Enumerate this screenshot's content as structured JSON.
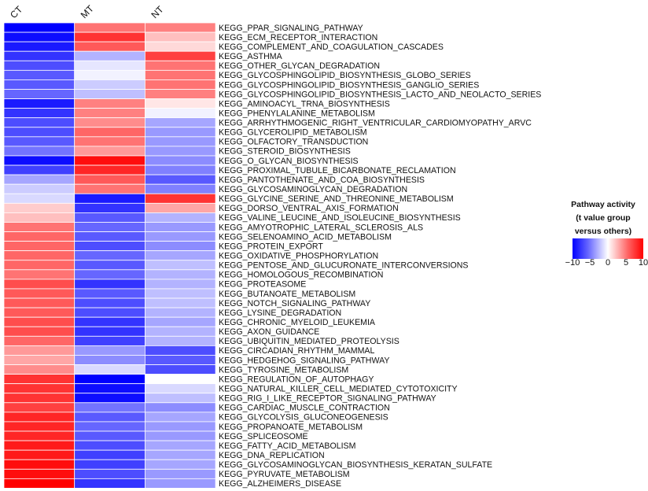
{
  "chart_data": {
    "type": "heatmap",
    "columns": [
      "CT",
      "MT",
      "NT"
    ],
    "rows": [
      "KEGG_PPAR_SIGNALING_PATHWAY",
      "KEGG_ECM_RECEPTOR_INTERACTION",
      "KEGG_COMPLEMENT_AND_COAGULATION_CASCADES",
      "KEGG_ASTHMA",
      "KEGG_OTHER_GLYCAN_DEGRADATION",
      "KEGG_GLYCOSPHINGOLIPID_BIOSYNTHESIS_GLOBO_SERIES",
      "KEGG_GLYCOSPHINGOLIPID_BIOSYNTHESIS_GANGLIO_SERIES",
      "KEGG_GLYCOSPHINGOLIPID_BIOSYNTHESIS_LACTO_AND_NEOLACTO_SERIES",
      "KEGG_AMINOACYL_TRNA_BIOSYNTHESIS",
      "KEGG_PHENYLALANINE_METABOLISM",
      "KEGG_ARRHYTHMOGENIC_RIGHT_VENTRICULAR_CARDIOMYOPATHY_ARVC",
      "KEGG_GLYCEROLIPID_METABOLISM",
      "KEGG_OLFACTORY_TRANSDUCTION",
      "KEGG_STEROID_BIOSYNTHESIS",
      "KEGG_O_GLYCAN_BIOSYNTHESIS",
      "KEGG_PROXIMAL_TUBULE_BICARBONATE_RECLAMATION",
      "KEGG_PANTOTHENATE_AND_COA_BIOSYNTHESIS",
      "KEGG_GLYCOSAMINOGLYCAN_DEGRADATION",
      "KEGG_GLYCINE_SERINE_AND_THREONINE_METABOLISM",
      "KEGG_DORSO_VENTRAL_AXIS_FORMATION",
      "KEGG_VALINE_LEUCINE_AND_ISOLEUCINE_BIOSYNTHESIS",
      "KEGG_AMYOTROPHIC_LATERAL_SCLEROSIS_ALS",
      "KEGG_SELENOAMINO_ACID_METABOLISM",
      "KEGG_PROTEIN_EXPORT",
      "KEGG_OXIDATIVE_PHOSPHORYLATION",
      "KEGG_PENTOSE_AND_GLUCURONATE_INTERCONVERSIONS",
      "KEGG_HOMOLOGOUS_RECOMBINATION",
      "KEGG_PROTEASOME",
      "KEGG_BUTANOATE_METABOLISM",
      "KEGG_NOTCH_SIGNALING_PATHWAY",
      "KEGG_LYSINE_DEGRADATION",
      "KEGG_CHRONIC_MYELOID_LEUKEMIA",
      "KEGG_AXON_GUIDANCE",
      "KEGG_UBIQUITIN_MEDIATED_PROTEOLYSIS",
      "KEGG_CIRCADIAN_RHYTHM_MAMMAL",
      "KEGG_HEDGEHOG_SIGNALING_PATHWAY",
      "KEGG_TYROSINE_METABOLISM",
      "KEGG_REGULATION_OF_AUTOPHAGY",
      "KEGG_NATURAL_KILLER_CELL_MEDIATED_CYTOTOXICITY",
      "KEGG_RIG_I_LIKE_RECEPTOR_SIGNALING_PATHWAY",
      "KEGG_CARDIAC_MUSCLE_CONTRACTION",
      "KEGG_GLYCOLYSIS_GLUCONEOGENESIS",
      "KEGG_PROPANOATE_METABOLISM",
      "KEGG_SPLICEOSOME",
      "KEGG_FATTY_ACID_METABOLISM",
      "KEGG_DNA_REPLICATION",
      "KEGG_GLYCOSAMINOGLYCAN_BIOSYNTHESIS_KERATAN_SULFATE",
      "KEGG_PYRUVATE_METABOLISM",
      "KEGG_ALZHEIMERS_DISEASE"
    ],
    "values": [
      [
        -10.0,
        5.5,
        5.0
      ],
      [
        -9.5,
        8.0,
        2.5
      ],
      [
        -9.0,
        6.5,
        1.5
      ],
      [
        -8.0,
        -3.0,
        7.5
      ],
      [
        -7.0,
        -1.0,
        5.5
      ],
      [
        -6.5,
        -0.5,
        5.5
      ],
      [
        -6.5,
        -2.0,
        5.5
      ],
      [
        -6.0,
        -2.5,
        5.0
      ],
      [
        -9.0,
        5.0,
        1.0
      ],
      [
        -8.0,
        5.0,
        -0.5
      ],
      [
        -7.0,
        4.5,
        -3.5
      ],
      [
        -7.0,
        6.0,
        -4.0
      ],
      [
        -6.5,
        5.5,
        -4.0
      ],
      [
        -5.5,
        4.0,
        -4.0
      ],
      [
        -9.5,
        9.5,
        -4.5
      ],
      [
        -7.5,
        8.5,
        -5.0
      ],
      [
        -3.5,
        6.5,
        -6.5
      ],
      [
        -2.0,
        5.5,
        -5.0
      ],
      [
        -1.5,
        -9.0,
        8.0
      ],
      [
        2.0,
        -8.0,
        3.5
      ],
      [
        2.5,
        -6.5,
        -3.0
      ],
      [
        5.5,
        -6.0,
        -4.0
      ],
      [
        6.0,
        -6.5,
        -4.0
      ],
      [
        6.0,
        -7.0,
        -4.5
      ],
      [
        6.0,
        -6.0,
        -3.5
      ],
      [
        6.0,
        -6.5,
        -2.5
      ],
      [
        5.5,
        -6.0,
        -3.0
      ],
      [
        7.0,
        -8.0,
        -3.0
      ],
      [
        6.5,
        -6.5,
        -2.5
      ],
      [
        6.5,
        -7.0,
        -2.5
      ],
      [
        6.5,
        -7.0,
        -3.0
      ],
      [
        7.0,
        -8.0,
        -3.5
      ],
      [
        7.0,
        -8.0,
        -3.0
      ],
      [
        6.0,
        -7.5,
        -3.0
      ],
      [
        4.0,
        -4.0,
        -7.0
      ],
      [
        3.5,
        -4.5,
        -6.5
      ],
      [
        4.5,
        -1.5,
        -7.0
      ],
      [
        8.0,
        -10.0,
        0.0
      ],
      [
        8.0,
        -9.5,
        -1.5
      ],
      [
        8.0,
        -9.5,
        -2.5
      ],
      [
        7.5,
        -5.5,
        -4.5
      ],
      [
        8.5,
        -6.5,
        -3.5
      ],
      [
        8.5,
        -6.0,
        -4.0
      ],
      [
        8.5,
        -6.5,
        -4.0
      ],
      [
        9.0,
        -7.0,
        -3.5
      ],
      [
        9.0,
        -7.5,
        -3.5
      ],
      [
        9.5,
        -7.5,
        -3.5
      ],
      [
        9.5,
        -7.0,
        -4.0
      ],
      [
        10.0,
        -8.0,
        -4.0
      ]
    ],
    "legend": {
      "title_lines": [
        "Pathway activity",
        "(t value group",
        "versus others)"
      ],
      "ticks": [
        "−10",
        "−5",
        "0",
        "5",
        "10"
      ],
      "tick_values": [
        -10,
        -5,
        0,
        5,
        10
      ],
      "range": [
        -10,
        10
      ],
      "colors": {
        "low": "#0000ff",
        "mid": "#ffffff",
        "high": "#ff0000"
      }
    }
  }
}
